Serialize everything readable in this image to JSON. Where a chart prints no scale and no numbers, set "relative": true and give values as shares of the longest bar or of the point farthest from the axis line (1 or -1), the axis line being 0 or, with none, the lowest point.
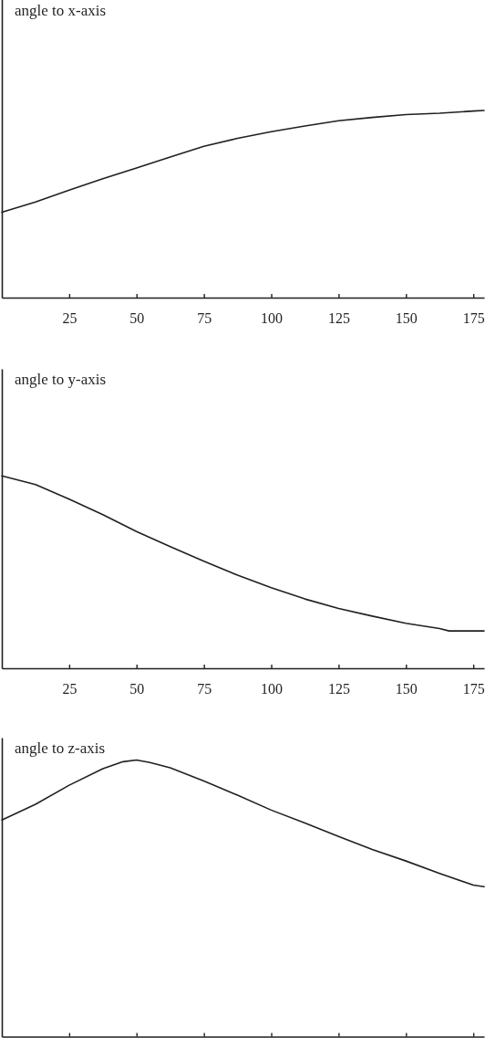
{
  "chart_data": [
    {
      "type": "line",
      "ylabel": "angle to x-axis",
      "relative": true,
      "x": [
        0,
        12.5,
        25,
        37.5,
        50,
        62.5,
        75,
        87.5,
        100,
        112.5,
        125,
        137.5,
        150,
        162.5,
        175,
        179
      ],
      "values": [
        0.456,
        0.511,
        0.574,
        0.635,
        0.693,
        0.751,
        0.809,
        0.851,
        0.887,
        0.917,
        0.945,
        0.963,
        0.978,
        0.985,
        0.997,
        1
      ],
      "color": "#231f20",
      "xlim": [
        0,
        179
      ],
      "xticks": [
        25,
        50,
        75,
        100,
        125,
        150,
        175
      ],
      "tick_labels": "x"
    },
    {
      "type": "line",
      "ylabel": "angle to y-axis",
      "relative": true,
      "x": [
        0,
        12.5,
        25,
        37.5,
        50,
        62.5,
        75,
        87.5,
        100,
        112.5,
        125,
        137.5,
        150,
        162.5,
        166,
        179
      ],
      "values": [
        1,
        0.955,
        0.879,
        0.798,
        0.71,
        0.632,
        0.556,
        0.484,
        0.419,
        0.36,
        0.311,
        0.271,
        0.234,
        0.206,
        0.194,
        0.194
      ],
      "color": "#231f20",
      "xlim": [
        0,
        179
      ],
      "xticks": [
        25,
        50,
        75,
        100,
        125,
        150,
        175
      ],
      "tick_labels": "x"
    },
    {
      "type": "line",
      "ylabel": "angle to z-axis",
      "relative": true,
      "x": [
        0,
        12.5,
        25,
        37.5,
        45,
        50,
        55,
        62.5,
        75,
        87.5,
        100,
        112.5,
        125,
        137.5,
        150,
        162.5,
        175,
        179
      ],
      "values": [
        0.783,
        0.84,
        0.909,
        0.969,
        0.994,
        1,
        0.991,
        0.972,
        0.924,
        0.873,
        0.819,
        0.772,
        0.724,
        0.677,
        0.635,
        0.59,
        0.548,
        0.542
      ],
      "color": "#231f20",
      "xlim": [
        0,
        179
      ],
      "xticks": [
        25,
        50,
        75,
        100,
        125,
        150,
        175
      ],
      "tick_labels": false
    }
  ]
}
